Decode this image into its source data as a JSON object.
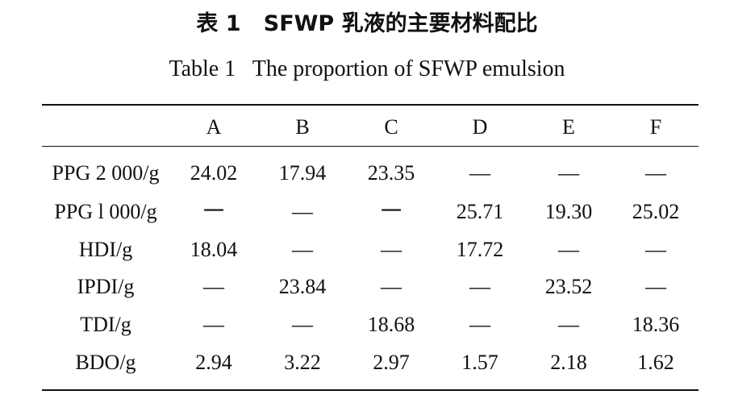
{
  "table": {
    "title_cn": "表 1   SFWP 乳液的主要材料配比",
    "title_en": "Table 1   The proportion of SFWP emulsion",
    "header": [
      "",
      "A",
      "B",
      "C",
      "D",
      "E",
      "F"
    ],
    "rows": [
      [
        "PPG 2 000/g",
        "24.02",
        "17.94",
        "23.35",
        "—",
        "—",
        "—"
      ],
      [
        "PPG l 000/g",
        "一",
        "—",
        "一",
        "25.71",
        "19.30",
        "25.02"
      ],
      [
        "HDI/g",
        "18.04",
        "—",
        "—",
        "17.72",
        "—",
        "—"
      ],
      [
        "IPDI/g",
        "—",
        "23.84",
        "—",
        "—",
        "23.52",
        "—"
      ],
      [
        "TDI/g",
        "—",
        "—",
        "18.68",
        "—",
        "—",
        "18.36"
      ],
      [
        "BDO/g",
        "2.94",
        "3.22",
        "2.97",
        "1.57",
        "2.18",
        "1.62"
      ]
    ]
  }
}
